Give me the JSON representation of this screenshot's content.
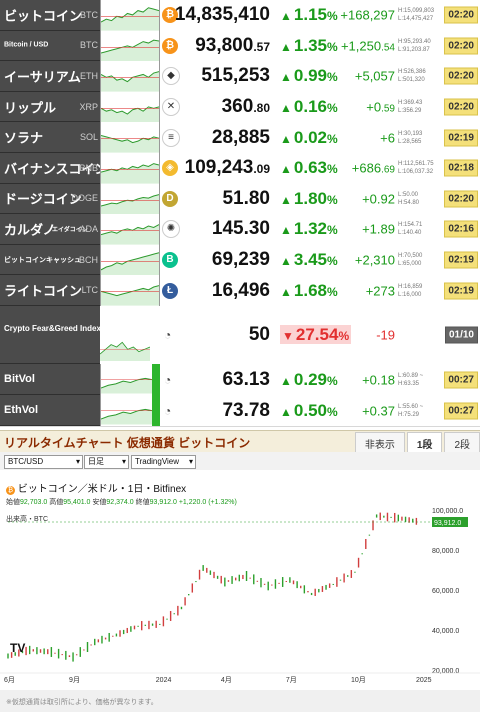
{
  "ticker": [
    {
      "name": "ビットコイン",
      "symbol": "BTC",
      "icon": "bitcoin-icon",
      "icon_color": "#f7931a",
      "icon_char": "₿",
      "price_main": "14,835,410",
      "price_dec": "",
      "pct_main": "1.15",
      "pct_sign": "%",
      "diff_main": "+168,297",
      "diff_dec": "",
      "high": "H:15,099,803",
      "low": "L:14,475,427",
      "time": "02:20",
      "trend": [
        0.3,
        0.4,
        0.35,
        0.5,
        0.45,
        0.6,
        0.55,
        0.7,
        0.65,
        0.8,
        0.75,
        0.7
      ]
    },
    {
      "name": "Bitcoin / USD",
      "symbol": "BTC",
      "icon": "bitcoin-icon",
      "icon_color": "#f7931a",
      "icon_char": "₿",
      "price_main": "93,800",
      "price_dec": ".57",
      "pct_main": "1.35",
      "pct_sign": "%",
      "diff_main": "+1,250",
      "diff_dec": ".54",
      "high": "H:95,293.40",
      "low": "L:91,203.87",
      "time": "02:20",
      "trend": [
        0.3,
        0.35,
        0.4,
        0.45,
        0.5,
        0.55,
        0.5,
        0.6,
        0.7,
        0.65,
        0.75,
        0.72
      ]
    },
    {
      "name": "イーサリアム",
      "symbol": "ETH",
      "icon": "ethereum-icon",
      "icon_color": "#ffffff",
      "icon_char": "◆",
      "price_main": "515,253",
      "price_dec": "",
      "pct_main": "0.99",
      "pct_sign": "%",
      "diff_main": "+5,057",
      "diff_dec": "",
      "high": "H:526,386",
      "low": "L:501,320",
      "time": "02:20",
      "trend": [
        0.6,
        0.5,
        0.55,
        0.4,
        0.45,
        0.35,
        0.5,
        0.55,
        0.6,
        0.5,
        0.65,
        0.7
      ]
    },
    {
      "name": "リップル",
      "symbol": "XRP",
      "icon": "xrp-icon",
      "icon_color": "#ffffff",
      "icon_char": "✕",
      "price_main": "360",
      "price_dec": ".80",
      "pct_main": "0.16",
      "pct_sign": "%",
      "diff_main": "+0",
      "diff_dec": ".59",
      "high": "H:369.43",
      "low": "L:356.29",
      "time": "02:20",
      "trend": [
        0.5,
        0.4,
        0.45,
        0.35,
        0.4,
        0.3,
        0.45,
        0.5,
        0.4,
        0.55,
        0.5,
        0.55
      ]
    },
    {
      "name": "ソラナ",
      "symbol": "SOL",
      "icon": "solana-icon",
      "icon_color": "#ffffff",
      "icon_char": "≡",
      "price_main": "28,885",
      "price_dec": "",
      "pct_main": "0.02",
      "pct_sign": "%",
      "diff_main": "+6",
      "diff_dec": "",
      "high": "H:30,193",
      "low": "L:28,565",
      "time": "02:19",
      "trend": [
        0.6,
        0.55,
        0.5,
        0.45,
        0.4,
        0.45,
        0.35,
        0.4,
        0.5,
        0.45,
        0.55,
        0.5
      ]
    },
    {
      "name": "バイナンスコイン",
      "symbol": "BNB",
      "icon": "bnb-icon",
      "icon_color": "#f3ba2f",
      "icon_char": "◈",
      "price_main": "109,243",
      "price_dec": ".09",
      "pct_main": "0.63",
      "pct_sign": "%",
      "diff_main": "+686",
      "diff_dec": ".69",
      "high": "H:112,561.75",
      "low": "L:106,037.32",
      "time": "02:18",
      "trend": [
        0.4,
        0.45,
        0.5,
        0.45,
        0.55,
        0.5,
        0.6,
        0.55,
        0.65,
        0.6,
        0.7,
        0.65
      ]
    },
    {
      "name": "ドージコイン",
      "symbol": "DOGE",
      "icon": "dogecoin-icon",
      "icon_color": "#c2a633",
      "icon_char": "D",
      "price_main": "51.80",
      "price_dec": "",
      "pct_main": "1.80",
      "pct_sign": "%",
      "diff_main": "+0.92",
      "diff_dec": "",
      "high": "L:50.00",
      "low": "H:54.80",
      "time": "02:20",
      "trend": [
        0.3,
        0.35,
        0.4,
        0.38,
        0.45,
        0.5,
        0.48,
        0.55,
        0.6,
        0.58,
        0.65,
        0.7
      ]
    },
    {
      "name": "カルダノ",
      "symbol": "ADA",
      "sub": "エイダコイン",
      "icon": "cardano-icon",
      "icon_color": "#ffffff",
      "icon_char": "✺",
      "price_main": "145.30",
      "price_dec": "",
      "pct_main": "1.32",
      "pct_sign": "%",
      "diff_main": "+1.89",
      "diff_dec": "",
      "high": "H:154.71",
      "low": "L:140.40",
      "time": "02:16",
      "trend": [
        0.35,
        0.4,
        0.45,
        0.4,
        0.5,
        0.55,
        0.5,
        0.6,
        0.55,
        0.65,
        0.6,
        0.7
      ]
    },
    {
      "name": "ビットコインキャッシュ",
      "symbol": "BCH",
      "icon": "bitcoin-cash-icon",
      "icon_color": "#0ac18e",
      "icon_char": "B",
      "price_main": "69,239",
      "price_dec": "",
      "pct_main": "3.45",
      "pct_sign": "%",
      "diff_main": "+2,310",
      "diff_dec": "",
      "high": "H:70,500",
      "low": "L:65,000",
      "time": "02:19",
      "trend": [
        0.2,
        0.3,
        0.35,
        0.45,
        0.4,
        0.5,
        0.55,
        0.6,
        0.65,
        0.7,
        0.75,
        0.8
      ]
    },
    {
      "name": "ライトコイン",
      "symbol": "LTC",
      "icon": "litecoin-icon",
      "icon_color": "#345d9d",
      "icon_char": "Ł",
      "price_main": "16,496",
      "price_dec": "",
      "pct_main": "1.68",
      "pct_sign": "%",
      "diff_main": "+273",
      "diff_dec": "",
      "high": "H:16,859",
      "low": "L:16,000",
      "time": "02:19",
      "trend": [
        0.5,
        0.45,
        0.4,
        0.35,
        0.4,
        0.45,
        0.5,
        0.55,
        0.6,
        0.55,
        0.65,
        0.7
      ]
    }
  ],
  "fear": {
    "name": "Crypto Fear&Greed Index",
    "value": "50",
    "pct_main": "27.54",
    "pct_sign": "%",
    "diff": "-19",
    "time": "01/10"
  },
  "vols": [
    {
      "name": "BitVol",
      "value": "63.13",
      "pct_main": "0.29",
      "pct_sign": "%",
      "diff": "+0.18",
      "range": "L:60.89 ~ H:63.35",
      "time": "00:27"
    },
    {
      "name": "EthVol",
      "value": "73.78",
      "pct_main": "0.50",
      "pct_sign": "%",
      "diff": "+0.37",
      "range": "L:55.60 ~ H:75.29",
      "time": "00:27"
    }
  ],
  "chart_section": {
    "title": "リアルタイムチャート 仮想通貨 ビットコイン",
    "tabs": [
      "非表示",
      "1段",
      "2段"
    ],
    "active_tab": 1,
    "pair_select": "BTC/USD",
    "interval_select": "日足",
    "view_select": "TradingView",
    "legend_title": "ビットコイン／米ドル・1日・Bitfinex",
    "ohlc": {
      "open_label": "始値",
      "open": "92,703.0",
      "high_label": "高値",
      "high": "95,401.0",
      "low_label": "安値",
      "low": "92,374.0",
      "close_label": "終値",
      "close": "93,912.0",
      "change": "+1,220.0 (+1.32%)"
    },
    "volume_label": "出来高・BTC",
    "last_price": "93,912.0",
    "footer": "※仮想通貨は取引所により、価格が異なります。"
  },
  "chart_data": {
    "type": "line",
    "x": [
      "2023-06",
      "2023-07",
      "2023-08",
      "2023-09",
      "2023-10",
      "2023-11",
      "2023-12",
      "2024-01",
      "2024-02",
      "2024-03",
      "2024-04",
      "2024-05",
      "2024-06",
      "2024-07",
      "2024-08",
      "2024-09",
      "2024-10",
      "2024-11",
      "2024-12",
      "2025-01"
    ],
    "y": [
      27000,
      30000,
      29000,
      26500,
      34000,
      37500,
      42000,
      43000,
      51000,
      71000,
      64000,
      67000,
      62000,
      65000,
      58000,
      63000,
      69000,
      97000,
      96000,
      94000
    ],
    "x_tick_labels": [
      "6月",
      "9月",
      "2024",
      "4月",
      "7月",
      "10月",
      "2025"
    ],
    "y_tick_labels": [
      "100,000.0",
      "80,000.0",
      "60,000.0",
      "40,000.0",
      "20,000.0"
    ],
    "ylim": [
      20000,
      110000
    ],
    "grid": false,
    "line_color": "#d13e3e",
    "up_color": "#2ca02c"
  }
}
